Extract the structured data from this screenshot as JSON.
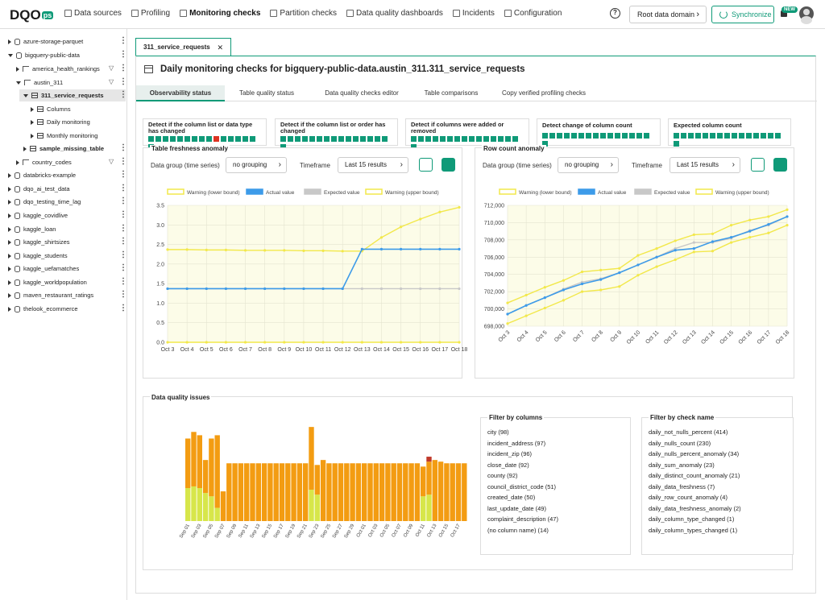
{
  "app": {
    "logo_text": "DQO",
    "logo_suffix": "ps"
  },
  "nav": [
    {
      "label": "Data sources",
      "icon": "database-icon",
      "active": false
    },
    {
      "label": "Profiling",
      "icon": "profiling-icon",
      "active": false
    },
    {
      "label": "Monitoring checks",
      "icon": "monitoring-icon",
      "active": true
    },
    {
      "label": "Partition checks",
      "icon": "partition-icon",
      "active": false
    },
    {
      "label": "Data quality dashboards",
      "icon": "dashboard-icon",
      "active": false
    },
    {
      "label": "Incidents",
      "icon": "warning-icon",
      "active": false
    },
    {
      "label": "Configuration",
      "icon": "gear-icon",
      "active": false
    }
  ],
  "header": {
    "help": "?",
    "domain_button": "Root data domain",
    "sync_button": "Synchronize",
    "new_badge": "NEW"
  },
  "sidebar": {
    "items": [
      {
        "label": "azure-storage-parquet",
        "level": 0,
        "type": "db",
        "expanded": false
      },
      {
        "label": "bigquery-public-data",
        "level": 0,
        "type": "db",
        "expanded": true
      },
      {
        "label": "america_health_rankings",
        "level": 1,
        "type": "schema",
        "expanded": false
      },
      {
        "label": "austin_311",
        "level": 1,
        "type": "schema",
        "expanded": true
      },
      {
        "label": "311_service_requests",
        "level": 2,
        "type": "table",
        "expanded": true,
        "selected": true
      },
      {
        "label": "Columns",
        "level": 3,
        "type": "columns",
        "expanded": false
      },
      {
        "label": "Daily monitoring",
        "level": 3,
        "type": "calendar",
        "expanded": false
      },
      {
        "label": "Monthly monitoring",
        "level": 3,
        "type": "calendar",
        "expanded": false
      },
      {
        "label": "sample_missing_table",
        "level": 2,
        "type": "table",
        "expanded": false,
        "bold": true
      },
      {
        "label": "country_codes",
        "level": 1,
        "type": "schema",
        "expanded": false
      },
      {
        "label": "databricks-example",
        "level": 0,
        "type": "db",
        "expanded": false
      },
      {
        "label": "dqo_ai_test_data",
        "level": 0,
        "type": "db",
        "expanded": false
      },
      {
        "label": "dqo_testing_time_lag",
        "level": 0,
        "type": "db",
        "expanded": false
      },
      {
        "label": "kaggle_covidlive",
        "level": 0,
        "type": "db",
        "expanded": false
      },
      {
        "label": "kaggle_loan",
        "level": 0,
        "type": "db",
        "expanded": false
      },
      {
        "label": "kaggle_shirtsizes",
        "level": 0,
        "type": "db",
        "expanded": false
      },
      {
        "label": "kaggle_students",
        "level": 0,
        "type": "db",
        "expanded": false
      },
      {
        "label": "kaggle_uefamatches",
        "level": 0,
        "type": "db",
        "expanded": false
      },
      {
        "label": "kaggle_worldpopulation",
        "level": 0,
        "type": "db",
        "expanded": false
      },
      {
        "label": "maven_restaurant_ratings",
        "level": 0,
        "type": "db",
        "expanded": false
      },
      {
        "label": "thelook_ecommerce",
        "level": 0,
        "type": "db",
        "expanded": false
      }
    ]
  },
  "main": {
    "tab": {
      "label": "311_service_requests",
      "close": "✕"
    },
    "title": "Daily monitoring checks for bigquery-public-data.austin_311.311_service_requests",
    "subtabs": [
      "Observability status",
      "Table quality status",
      "Data quality checks editor",
      "Table comparisons",
      "Copy verified profiling checks"
    ],
    "status_boxes": [
      {
        "label": "Detect if the column list or data type has changed",
        "cells": [
          "ok",
          "ok",
          "ok",
          "ok",
          "ok",
          "ok",
          "ok",
          "ok",
          "ok",
          "red",
          "ok",
          "ok",
          "ok",
          "ok",
          "ok",
          "ok"
        ]
      },
      {
        "label": "Detect if the column list or order has changed",
        "cells": [
          "ok",
          "ok",
          "ok",
          "ok",
          "ok",
          "ok",
          "ok",
          "ok",
          "ok",
          "ok",
          "ok",
          "ok",
          "ok",
          "ok",
          "ok",
          "ok"
        ]
      },
      {
        "label": "Detect if columns were added or removed",
        "cells": [
          "ok",
          "ok",
          "ok",
          "ok",
          "ok",
          "ok",
          "ok",
          "ok",
          "ok",
          "ok",
          "ok",
          "ok",
          "ok",
          "ok",
          "ok",
          "ok"
        ]
      },
      {
        "label": "Detect change of column count",
        "cells": [
          "ok",
          "ok",
          "ok",
          "ok",
          "ok",
          "ok",
          "ok",
          "ok",
          "ok",
          "ok",
          "ok",
          "ok",
          "ok",
          "ok",
          "ok",
          "ok"
        ]
      },
      {
        "label": "Expected column count",
        "cells": [
          "ok",
          "ok",
          "ok",
          "ok",
          "ok",
          "ok",
          "ok",
          "ok",
          "ok",
          "ok",
          "ok",
          "ok",
          "ok",
          "ok",
          "ok",
          "ok"
        ]
      }
    ],
    "controls": {
      "data_group_label": "Data group (time series)",
      "data_group_value": "no grouping",
      "timeframe_label": "Timeframe",
      "timeframe_value": "Last 15 results"
    },
    "dq_issues_title": "Data quality issues",
    "filter_columns": {
      "title": "Filter by columns",
      "items": [
        "city  (98)",
        "incident_address  (97)",
        "incident_zip  (96)",
        "close_date  (92)",
        "county  (92)",
        "council_district_code  (51)",
        "created_date  (50)",
        "last_update_date  (49)",
        "complaint_description  (47)",
        "(no column name)  (14)"
      ]
    },
    "filter_checks": {
      "title": "Filter by check name",
      "items": [
        "daily_not_nulls_percent  (414)",
        "daily_nulls_count  (230)",
        "daily_nulls_percent_anomaly  (34)",
        "daily_sum_anomaly  (23)",
        "daily_distinct_count_anomaly  (21)",
        "daily_data_freshness  (7)",
        "daily_row_count_anomaly  (4)",
        "daily_data_freshness_anomaly  (2)",
        "daily_column_type_changed  (1)",
        "daily_column_types_changed  (1)"
      ]
    }
  },
  "colors": {
    "accent": "#0f9a78",
    "warning": "#f2e84b",
    "actual": "#3d9be9",
    "expected": "#c8c8c8",
    "issue_orange": "#f39c12",
    "issue_yellow": "#d7e64a",
    "issue_red": "#c0392b"
  },
  "chart_data": [
    {
      "type": "line",
      "title": "Table freshness anomaly",
      "x": [
        "Oct 3",
        "Oct 4",
        "Oct 5",
        "Oct 6",
        "Oct 7",
        "Oct 8",
        "Oct 9",
        "Oct 10",
        "Oct 11",
        "Oct 12",
        "Oct 13",
        "Oct 14",
        "Oct 15",
        "Oct 16",
        "Oct 17",
        "Oct 18"
      ],
      "ylim": [
        0,
        3.5
      ],
      "yticks": [
        0,
        0.5,
        1.0,
        1.5,
        2.0,
        2.5,
        3.0,
        3.5
      ],
      "grid": true,
      "legend_position": "top",
      "series": [
        {
          "name": "Warning (lower bound)",
          "values": [
            0,
            0,
            0,
            0,
            0,
            0,
            0,
            0,
            0,
            0,
            0,
            0,
            0,
            0,
            0,
            0
          ]
        },
        {
          "name": "Actual value",
          "values": [
            1.37,
            1.37,
            1.37,
            1.37,
            1.37,
            1.37,
            1.37,
            1.37,
            1.37,
            1.37,
            2.38,
            2.38,
            2.38,
            2.38,
            2.38,
            2.38
          ]
        },
        {
          "name": "Expected value",
          "values": [
            1.37,
            1.37,
            1.37,
            1.37,
            1.37,
            1.37,
            1.37,
            1.37,
            1.37,
            1.37,
            1.37,
            1.37,
            1.37,
            1.37,
            1.37,
            1.37
          ]
        },
        {
          "name": "Warning (upper bound)",
          "values": [
            2.37,
            2.37,
            2.36,
            2.36,
            2.35,
            2.35,
            2.35,
            2.34,
            2.34,
            2.33,
            2.33,
            2.68,
            2.95,
            3.15,
            3.33,
            3.45
          ]
        }
      ]
    },
    {
      "type": "line",
      "title": "Row count anomaly",
      "x": [
        "Oct 3",
        "Oct 4",
        "Oct 5",
        "Oct 6",
        "Oct 7",
        "Oct 8",
        "Oct 9",
        "Oct 10",
        "Oct 11",
        "Oct 12",
        "Oct 13",
        "Oct 14",
        "Oct 15",
        "Oct 16",
        "Oct 17",
        "Oct 18"
      ],
      "ylim": [
        698000,
        712000
      ],
      "yticks": [
        698000,
        700000,
        702000,
        704000,
        706000,
        708000,
        710000,
        712000
      ],
      "grid": true,
      "legend_position": "top",
      "series": [
        {
          "name": "Warning (lower bound)",
          "values": [
            698300,
            699200,
            700100,
            701000,
            702000,
            702200,
            702600,
            703900,
            704900,
            705700,
            706600,
            706700,
            707700,
            708300,
            708800,
            709700
          ]
        },
        {
          "name": "Actual value",
          "values": [
            699400,
            700400,
            701300,
            702200,
            702900,
            703400,
            704200,
            705100,
            706000,
            706800,
            707000,
            707800,
            708300,
            709000,
            709800,
            710700
          ]
        },
        {
          "name": "Expected value",
          "values": [
            699400,
            700400,
            701300,
            702300,
            703100,
            703500,
            704200,
            705100,
            706000,
            707000,
            707700,
            707700,
            708200,
            709100,
            709700,
            710700
          ]
        },
        {
          "name": "Warning (upper bound)",
          "values": [
            700700,
            701600,
            702500,
            703300,
            704300,
            704500,
            704700,
            706200,
            707000,
            707900,
            708600,
            708700,
            709700,
            710300,
            710700,
            711500
          ]
        }
      ]
    },
    {
      "type": "bar",
      "title": "Data quality issues",
      "stacked": true,
      "categories": [
        "Sep 01",
        "Sep 02",
        "Sep 03",
        "Sep 04",
        "Sep 05",
        "Sep 06",
        "Sep 07",
        "Sep 08",
        "Sep 09",
        "Sep 10",
        "Sep 11",
        "Sep 12",
        "Sep 13",
        "Sep 14",
        "Sep 15",
        "Sep 16",
        "Sep 17",
        "Sep 18",
        "Sep 19",
        "Sep 20",
        "Sep 21",
        "Sep 22",
        "Sep 23",
        "Sep 24",
        "Sep 25",
        "Sep 26",
        "Sep 27",
        "Sep 28",
        "Sep 29",
        "Sep 30",
        "Oct 01",
        "Oct 02",
        "Oct 03",
        "Oct 04",
        "Oct 05",
        "Oct 06",
        "Oct 07",
        "Oct 08",
        "Oct 09",
        "Oct 10",
        "Oct 11",
        "Oct 12",
        "Oct 13",
        "Oct 14",
        "Oct 15",
        "Oct 16",
        "Oct 17",
        "Oct 18"
      ],
      "xticks": [
        "Sep 01",
        "Sep 03",
        "Sep 05",
        "Sep 07",
        "Sep 09",
        "Sep 11",
        "Sep 13",
        "Sep 15",
        "Sep 17",
        "Sep 19",
        "Sep 21",
        "Sep 23",
        "Sep 25",
        "Sep 27",
        "Sep 29",
        "Oct 01",
        "Oct 03",
        "Oct 05",
        "Oct 07",
        "Oct 09",
        "Oct 11",
        "Oct 13",
        "Oct 15",
        "Oct 17"
      ],
      "series": [
        {
          "name": "warning",
          "values": [
            20,
            21,
            20,
            17,
            15,
            8,
            0,
            0,
            0,
            0,
            0,
            0,
            0,
            0,
            0,
            0,
            0,
            0,
            0,
            0,
            0,
            19,
            16,
            0,
            0,
            0,
            0,
            0,
            0,
            0,
            0,
            0,
            0,
            0,
            0,
            0,
            0,
            0,
            0,
            0,
            15,
            16,
            0,
            0,
            0,
            0,
            0,
            0
          ]
        },
        {
          "name": "error",
          "values": [
            30,
            33,
            32,
            20,
            35,
            44,
            18,
            35,
            35,
            35,
            35,
            35,
            35,
            35,
            35,
            35,
            35,
            35,
            35,
            35,
            35,
            38,
            18,
            37,
            35,
            35,
            35,
            35,
            35,
            35,
            35,
            35,
            35,
            35,
            35,
            35,
            35,
            35,
            35,
            35,
            18,
            20,
            37,
            36,
            35,
            35,
            35,
            35
          ]
        },
        {
          "name": "fatal",
          "values": [
            0,
            0,
            0,
            0,
            0,
            0,
            0,
            0,
            0,
            0,
            0,
            0,
            0,
            0,
            0,
            0,
            0,
            0,
            0,
            0,
            0,
            0,
            0,
            0,
            0,
            0,
            0,
            0,
            0,
            0,
            0,
            0,
            0,
            0,
            0,
            0,
            0,
            0,
            0,
            0,
            0,
            3,
            0,
            0,
            0,
            0,
            0,
            0
          ]
        }
      ]
    }
  ]
}
